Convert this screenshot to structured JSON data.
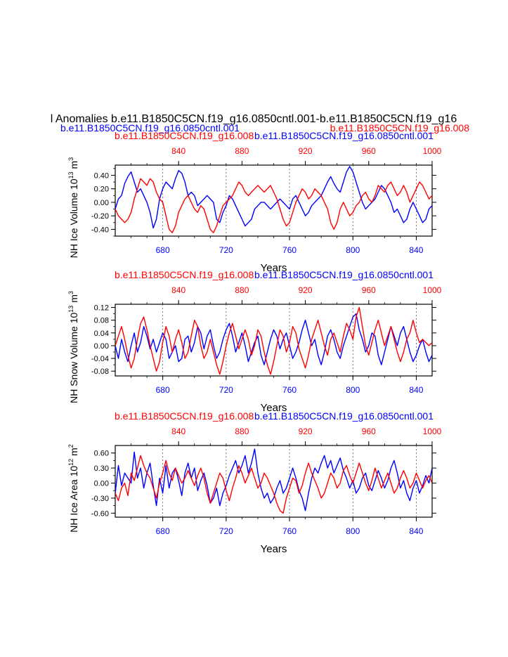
{
  "figure": {
    "main_title": "l Anomalies b.e11.B1850C5CN.f19_g16.0850cntl.001-b.e11.B1850C5CN.f19_g16",
    "case_left": "b.e11.B1850C5CN.f19_g16.0850cntl.001",
    "case_right": "b.e11.B1850C5CN.f19_g16.008",
    "red_case_label": "b.e11.B1850C5CN.f19_g16.008",
    "blue_case_label": "b.e11.B1850C5CN.f19_g16.0850cntl.001"
  },
  "colors": {
    "red": "#ff0000",
    "blue": "#0000ff",
    "black": "#000000",
    "grid": "#555555"
  },
  "chart_data": [
    {
      "type": "line",
      "name": "nh-ice-volume",
      "ylabel_main": "NH Ice Volume 10",
      "ylabel_exp": "13",
      "ylabel_unit": " m",
      "ylabel_unit_exp": "3",
      "xlabel": "Years",
      "ylim": [
        -0.5,
        0.55
      ],
      "yticks": [
        -0.4,
        -0.2,
        0.0,
        0.2,
        0.4
      ],
      "ytick_labels": [
        "-0.40",
        "-0.20",
        "0.00",
        "0.20",
        "0.40"
      ],
      "blue_axis": {
        "range": [
          650,
          850
        ],
        "ticks": [
          680,
          720,
          760,
          800,
          840
        ],
        "labels": [
          "680",
          "720",
          "760",
          "800",
          "840"
        ]
      },
      "red_axis": {
        "range": [
          800,
          1000
        ],
        "ticks": [
          840,
          880,
          920,
          960,
          1000
        ],
        "labels": [
          "840",
          "880",
          "920",
          "960",
          "1000"
        ]
      },
      "gridlines_at": [
        680,
        720,
        760,
        800,
        840
      ],
      "series": [
        {
          "name": "b.e11.B1850C5CN.f19_g16.0850cntl.001",
          "color": "blue",
          "axis": "blue",
          "x_start": 650,
          "x_step": 2,
          "values": [
            -0.1,
            0.05,
            0.1,
            0.28,
            0.38,
            0.45,
            0.3,
            0.15,
            0.2,
            0.1,
            0.0,
            -0.15,
            -0.38,
            -0.25,
            0.05,
            0.2,
            0.3,
            0.25,
            0.2,
            0.35,
            0.47,
            0.43,
            0.3,
            0.1,
            0.15,
            0.1,
            -0.05,
            0.0,
            0.05,
            0.1,
            0.05,
            0.0,
            -0.25,
            -0.3,
            -0.15,
            -0.05,
            0.1,
            0.05,
            -0.05,
            -0.15,
            -0.25,
            -0.35,
            -0.3,
            -0.25,
            -0.1,
            -0.05,
            0.0,
            0.0,
            -0.05,
            -0.1,
            -0.05,
            0.0,
            0.05,
            0.0,
            -0.05,
            -0.1,
            0.05,
            0.1,
            0.0,
            -0.1,
            -0.2,
            -0.15,
            -0.05,
            0.0,
            0.05,
            0.1,
            0.2,
            0.3,
            0.38,
            0.28,
            0.2,
            0.15,
            0.3,
            0.45,
            0.53,
            0.45,
            0.3,
            0.15,
            0.0,
            -0.1,
            -0.05,
            0.0,
            0.05,
            0.15,
            0.25,
            0.2,
            0.1,
            0.0,
            -0.15,
            -0.1,
            -0.2,
            -0.3,
            -0.25,
            -0.1,
            0.0,
            -0.1,
            -0.2,
            -0.3,
            -0.25,
            -0.1,
            -0.05
          ]
        },
        {
          "name": "b.e11.B1850C5CN.f19_g16.008",
          "color": "red",
          "axis": "red",
          "x_start": 800,
          "x_step": 2,
          "values": [
            -0.1,
            -0.2,
            -0.25,
            -0.3,
            -0.25,
            -0.15,
            0.05,
            0.2,
            0.35,
            0.3,
            0.25,
            0.35,
            0.3,
            0.15,
            0.05,
            0.0,
            -0.2,
            -0.4,
            -0.45,
            -0.35,
            -0.15,
            -0.05,
            0.05,
            0.1,
            0.0,
            -0.1,
            -0.15,
            -0.05,
            -0.1,
            -0.25,
            -0.4,
            -0.45,
            -0.35,
            -0.2,
            -0.05,
            0.0,
            0.05,
            0.1,
            0.2,
            0.3,
            0.25,
            0.15,
            0.1,
            0.15,
            0.2,
            0.25,
            0.2,
            0.15,
            0.2,
            0.25,
            0.15,
            0.05,
            -0.1,
            -0.25,
            -0.35,
            -0.3,
            -0.15,
            0.0,
            0.1,
            0.2,
            0.15,
            0.05,
            0.1,
            0.2,
            0.15,
            0.1,
            0.0,
            -0.1,
            -0.3,
            -0.4,
            -0.3,
            -0.1,
            0.0,
            -0.1,
            -0.2,
            -0.15,
            -0.05,
            0.0,
            0.1,
            0.15,
            0.05,
            0.0,
            0.1,
            0.25,
            0.2,
            0.15,
            0.25,
            0.3,
            0.2,
            0.1,
            0.15,
            0.25,
            0.15,
            0.0,
            0.1,
            0.2,
            0.3,
            0.25,
            0.15,
            0.05,
            0.1
          ]
        }
      ]
    },
    {
      "type": "line",
      "name": "nh-snow-volume",
      "ylabel_main": "NH Snow Volume 10",
      "ylabel_exp": "13",
      "ylabel_unit": " m",
      "ylabel_unit_exp": "3",
      "xlabel": "Years",
      "ylim": [
        -0.095,
        0.13
      ],
      "yticks": [
        -0.08,
        -0.04,
        0.0,
        0.04,
        0.08,
        0.12
      ],
      "ytick_labels": [
        "-0.08",
        "-0.04",
        "0.00",
        "0.04",
        "0.08",
        "0.12"
      ],
      "blue_axis": {
        "range": [
          650,
          850
        ],
        "ticks": [
          680,
          720,
          760,
          800,
          840
        ],
        "labels": [
          "680",
          "720",
          "760",
          "800",
          "840"
        ]
      },
      "red_axis": {
        "range": [
          800,
          1000
        ],
        "ticks": [
          840,
          880,
          920,
          960,
          1000
        ],
        "labels": [
          "840",
          "880",
          "920",
          "960",
          "1000"
        ]
      },
      "gridlines_at": [
        680,
        720,
        760,
        800,
        840
      ],
      "series": [
        {
          "name": "b.e11.B1850C5CN.f19_g16.0850cntl.001",
          "color": "blue",
          "axis": "blue",
          "x_start": 650,
          "x_step": 2,
          "values": [
            0.0,
            -0.04,
            0.02,
            -0.02,
            -0.05,
            0.0,
            0.04,
            -0.02,
            0.01,
            0.06,
            0.03,
            -0.01,
            0.02,
            -0.02,
            0.01,
            0.04,
            0.02,
            -0.04,
            -0.02,
            0.0,
            -0.05,
            -0.04,
            0.02,
            0.03,
            -0.02,
            0.01,
            0.06,
            0.04,
            -0.01,
            0.03,
            0.05,
            0.0,
            -0.04,
            -0.02,
            0.02,
            0.05,
            0.07,
            0.03,
            -0.02,
            0.01,
            0.04,
            0.0,
            -0.05,
            -0.02,
            0.01,
            0.03,
            -0.03,
            -0.06,
            -0.02,
            0.02,
            0.05,
            0.03,
            -0.01,
            0.02,
            0.04,
            0.0,
            -0.04,
            -0.02,
            0.01,
            0.05,
            0.08,
            0.04,
            0.0,
            0.02,
            -0.03,
            -0.06,
            -0.02,
            0.03,
            0.05,
            0.02,
            -0.02,
            -0.04,
            0.0,
            0.03,
            0.06,
            0.09,
            0.1,
            0.05,
            0.02,
            -0.02,
            0.0,
            0.04,
            0.03,
            -0.03,
            -0.06,
            -0.02,
            0.02,
            0.06,
            0.03,
            0.0,
            0.04,
            0.06,
            0.02,
            -0.02,
            -0.05,
            -0.03,
            0.0,
            0.02,
            -0.02,
            -0.05,
            -0.03
          ]
        },
        {
          "name": "b.e11.B1850C5CN.f19_g16.008",
          "color": "red",
          "axis": "red",
          "x_start": 800,
          "x_step": 2,
          "values": [
            0.0,
            0.03,
            0.06,
            0.02,
            -0.03,
            -0.07,
            -0.04,
            0.02,
            0.07,
            0.09,
            0.05,
            0.0,
            -0.04,
            -0.08,
            -0.05,
            0.01,
            0.06,
            0.03,
            -0.02,
            0.02,
            0.05,
            0.01,
            -0.04,
            -0.02,
            0.03,
            0.08,
            0.06,
            0.0,
            -0.04,
            -0.02,
            0.02,
            -0.02,
            -0.06,
            -0.09,
            -0.05,
            0.0,
            0.04,
            0.07,
            0.03,
            -0.01,
            0.02,
            0.05,
            0.02,
            -0.03,
            0.0,
            0.05,
            0.03,
            -0.02,
            -0.06,
            -0.09,
            -0.05,
            0.0,
            0.05,
            0.03,
            -0.02,
            0.01,
            0.06,
            0.04,
            -0.01,
            -0.04,
            -0.07,
            -0.03,
            0.02,
            0.05,
            0.08,
            0.04,
            0.0,
            -0.03,
            0.02,
            0.04,
            0.01,
            -0.02,
            0.03,
            0.07,
            0.05,
            0.02,
            0.09,
            0.12,
            0.06,
            0.0,
            -0.03,
            0.01,
            0.05,
            0.08,
            0.04,
            0.0,
            0.03,
            0.06,
            0.02,
            -0.02,
            -0.05,
            -0.02,
            0.02,
            0.04,
            0.08,
            0.04,
            0.01,
            0.02,
            0.01,
            0.0,
            0.01
          ]
        }
      ]
    },
    {
      "type": "line",
      "name": "nh-ice-area",
      "ylabel_main": "NH Ice Area 10",
      "ylabel_exp": "12",
      "ylabel_unit": " m",
      "ylabel_unit_exp": "2",
      "xlabel": "Years",
      "ylim": [
        -0.68,
        0.75
      ],
      "yticks": [
        -0.6,
        -0.3,
        0.0,
        0.3,
        0.6
      ],
      "ytick_labels": [
        "-0.60",
        "-0.30",
        "0.00",
        "0.30",
        "0.60"
      ],
      "blue_axis": {
        "range": [
          650,
          850
        ],
        "ticks": [
          680,
          720,
          760,
          800,
          840
        ],
        "labels": [
          "680",
          "720",
          "760",
          "800",
          "840"
        ]
      },
      "red_axis": {
        "range": [
          800,
          1000
        ],
        "ticks": [
          840,
          880,
          920,
          960,
          1000
        ],
        "labels": [
          "840",
          "880",
          "920",
          "960",
          "1000"
        ]
      },
      "gridlines_at": [
        680,
        720,
        760,
        800,
        840
      ],
      "series": [
        {
          "name": "b.e11.B1850C5CN.f19_g16.0850cntl.001",
          "color": "blue",
          "axis": "blue",
          "x_start": 650,
          "x_step": 2,
          "values": [
            -0.2,
            0.35,
            -0.05,
            0.2,
            0.1,
            0.0,
            0.62,
            0.1,
            0.3,
            -0.1,
            0.2,
            0.4,
            -0.05,
            -0.45,
            0.1,
            -0.2,
            0.35,
            -0.1,
            0.2,
            0.3,
            0.05,
            -0.25,
            0.2,
            0.4,
            0.1,
            0.3,
            -0.15,
            0.05,
            0.2,
            -0.05,
            -0.4,
            -0.3,
            -0.1,
            -0.45,
            -0.2,
            -0.05,
            0.15,
            0.3,
            0.45,
            0.2,
            0.35,
            0.55,
            0.2,
            0.4,
            0.68,
            0.2,
            -0.1,
            -0.3,
            -0.2,
            -0.4,
            -0.3,
            -0.1,
            0.05,
            -0.2,
            -0.1,
            0.1,
            0.3,
            0.1,
            -0.15,
            -0.3,
            -0.55,
            -0.2,
            0.1,
            0.3,
            0.2,
            0.4,
            0.55,
            0.3,
            0.45,
            0.2,
            0.35,
            0.5,
            0.25,
            0.1,
            -0.1,
            0.05,
            -0.2,
            -0.1,
            0.1,
            0.2,
            -0.05,
            -0.15,
            0.05,
            0.25,
            0.1,
            -0.1,
            0.05,
            0.3,
            0.45,
            0.2,
            -0.1,
            0.05,
            -0.2,
            -0.35,
            -0.1,
            0.05,
            -0.2,
            -0.05,
            0.15,
            0.0,
            0.3
          ]
        },
        {
          "name": "b.e11.B1850C5CN.f19_g16.008",
          "color": "red",
          "axis": "red",
          "x_start": 800,
          "x_step": 2,
          "values": [
            -0.2,
            -0.35,
            -0.1,
            0.0,
            -0.25,
            0.2,
            0.05,
            0.3,
            0.55,
            0.35,
            0.2,
            0.1,
            -0.1,
            -0.3,
            0.0,
            0.2,
            0.45,
            0.2,
            0.05,
            0.3,
            0.15,
            0.0,
            0.1,
            0.25,
            0.1,
            -0.05,
            0.15,
            0.3,
            0.1,
            -0.2,
            -0.4,
            -0.2,
            0.0,
            0.2,
            0.1,
            -0.15,
            -0.35,
            -0.1,
            0.1,
            0.35,
            0.2,
            0.0,
            0.15,
            0.3,
            0.1,
            -0.1,
            0.0,
            0.2,
            0.1,
            -0.05,
            -0.2,
            -0.4,
            -0.55,
            -0.6,
            -0.3,
            -0.1,
            0.1,
            0.05,
            -0.2,
            -0.05,
            0.2,
            0.4,
            0.2,
            0.05,
            -0.1,
            -0.3,
            -0.2,
            0.0,
            0.2,
            0.1,
            -0.1,
            0.0,
            0.25,
            0.35,
            0.15,
            0.0,
            0.2,
            0.4,
            0.2,
            0.0,
            -0.15,
            0.05,
            0.3,
            0.1,
            -0.1,
            0.05,
            0.2,
            0.0,
            -0.2,
            -0.1,
            0.1,
            0.25,
            0.1,
            -0.1,
            0.0,
            0.2,
            0.05,
            -0.1,
            0.05,
            0.15,
            0.0
          ]
        }
      ]
    }
  ]
}
